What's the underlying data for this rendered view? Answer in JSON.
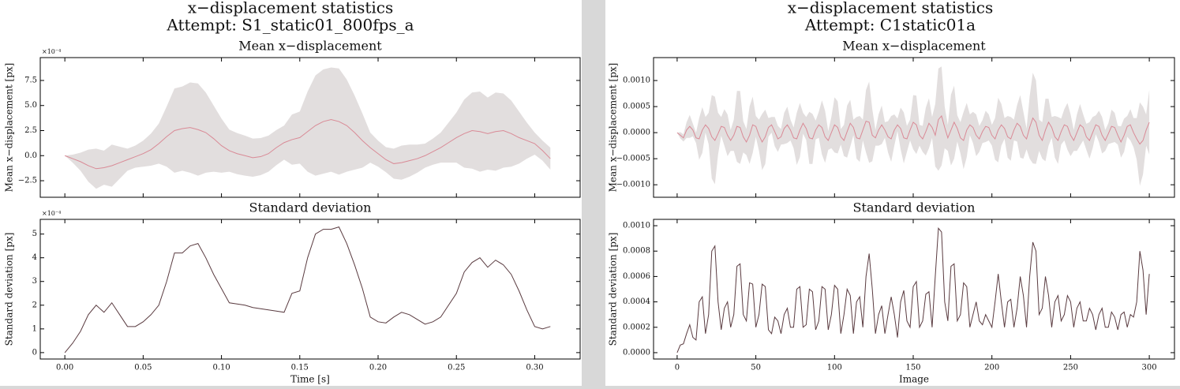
{
  "chart_data": [
    {
      "type": "line",
      "figure_title": "x−displacement statistics",
      "figure_subtitle": "Attempt: S1_static01_800fps_a",
      "title": "Mean x−displacement",
      "ylabel": "Mean x−displacement [px]",
      "offset_text": "×10⁻⁴",
      "values": [
        0,
        -0.3,
        -0.6,
        -1.0,
        -1.3,
        -1.2,
        -1.0,
        -0.7,
        -0.4,
        -0.1,
        0.2,
        0.6,
        1.2,
        1.9,
        2.5,
        2.7,
        2.8,
        2.6,
        2.3,
        1.7,
        1.0,
        0.5,
        0.2,
        0,
        -0.2,
        -0.1,
        0.2,
        0.8,
        1.3,
        1.6,
        1.8,
        2.4,
        3.0,
        3.4,
        3.6,
        3.4,
        3.0,
        2.3,
        1.5,
        0.8,
        0.2,
        -0.4,
        -0.8,
        -0.7,
        -0.5,
        -0.3,
        0,
        0.4,
        0.8,
        1.3,
        1.8,
        2.2,
        2.5,
        2.4,
        2.2,
        2.4,
        2.5,
        2.2,
        1.8,
        1.5,
        1.2,
        0.5,
        -0.3
      ],
      "color": "#d98a96",
      "band_color": "#e2dede",
      "ylim": [
        -4.15,
        9.78
      ],
      "yticks": [
        {
          "value": -2.5,
          "label": "−2.5"
        },
        {
          "value": 0,
          "label": "0.0"
        },
        2.5,
        {
          "value": 5,
          "label": "5.0"
        },
        7.5
      ]
    },
    {
      "type": "line",
      "title": "Standard deviation",
      "ylabel": "Standard deviation [px]",
      "xlabel": "Time [s]",
      "offset_text": "×10⁻⁴",
      "x": [
        0,
        0.005,
        0.01,
        0.015,
        0.02,
        0.025,
        0.03,
        0.035,
        0.04,
        0.045,
        0.05,
        0.055,
        0.06,
        0.065,
        0.07,
        0.075,
        0.08,
        0.085,
        0.09,
        0.095,
        0.1,
        0.105,
        0.11,
        0.115,
        0.12,
        0.125,
        0.13,
        0.135,
        0.14,
        0.145,
        0.15,
        0.155,
        0.16,
        0.165,
        0.17,
        0.175,
        0.18,
        0.185,
        0.19,
        0.195,
        0.2,
        0.205,
        0.21,
        0.215,
        0.22,
        0.225,
        0.23,
        0.235,
        0.24,
        0.245,
        0.25,
        0.255,
        0.26,
        0.265,
        0.27,
        0.275,
        0.28,
        0.285,
        0.29,
        0.295,
        0.3,
        0.305,
        0.31
      ],
      "values": [
        0,
        0.4,
        0.9,
        1.6,
        2.0,
        1.7,
        2.1,
        1.6,
        1.1,
        1.1,
        1.3,
        1.6,
        2.0,
        3.0,
        4.2,
        4.2,
        4.5,
        4.6,
        4.0,
        3.3,
        2.7,
        2.1,
        2.05,
        2.0,
        1.9,
        1.85,
        1.8,
        1.75,
        1.7,
        2.5,
        2.6,
        4.0,
        5.0,
        5.2,
        5.2,
        5.3,
        4.6,
        3.7,
        2.7,
        1.5,
        1.3,
        1.25,
        1.5,
        1.7,
        1.6,
        1.4,
        1.2,
        1.3,
        1.5,
        2.0,
        2.5,
        3.4,
        3.8,
        4.0,
        3.6,
        3.9,
        3.7,
        3.3,
        2.6,
        1.8,
        1.1,
        1.0,
        1.1
      ],
      "color": "#5a3b40",
      "xlim": [
        -0.0157,
        0.329
      ],
      "xticks": [
        {
          "value": 0,
          "label": "0.00"
        },
        0.05,
        {
          "value": 0.1,
          "label": "0.10"
        },
        0.15,
        {
          "value": 0.2,
          "label": "0.20"
        },
        0.25,
        {
          "value": 0.3,
          "label": "0.30"
        }
      ],
      "ylim": [
        -0.27,
        5.62
      ],
      "yticks": [
        0,
        1,
        2,
        3,
        4,
        5
      ]
    },
    {
      "type": "line",
      "figure_title": "x−displacement statistics",
      "figure_subtitle": "Attempt: C1static01a",
      "title": "Mean x−displacement",
      "ylabel": "Mean x−displacement [px]",
      "values": [
        0,
        -5e-05,
        -0.0001,
        5e-05,
        0.00012,
        5e-05,
        -0.0001,
        -0.00012,
        5e-05,
        0.00015,
        8e-05,
        -8e-05,
        -0.00015,
        -2e-05,
        0.00012,
        0.0001,
        -5e-05,
        -0.00015,
        -5e-05,
        0.00012,
        0.0001,
        -8e-05,
        -0.00018,
        -5e-05,
        0.00015,
        0.00012,
        -5e-05,
        -0.00018,
        -8e-05,
        0.0001,
        0.00015,
        2e-05,
        -0.00012,
        -8e-05,
        8e-05,
        0.00015,
        5e-05,
        -0.0001,
        -0.00012,
        5e-05,
        0.00018,
        8e-05,
        -0.0001,
        -0.00012,
        5e-05,
        0.00015,
        0.0001,
        -8e-05,
        -0.00015,
        0,
        0.00015,
        0.0001,
        -8e-05,
        -0.00015,
        2e-05,
        0.00018,
        0.0001,
        -0.0001,
        -0.00012,
        5e-05,
        0.00022,
        0.0002,
        -5e-05,
        -0.0001,
        5e-05,
        0.00015,
        5e-05,
        -8e-05,
        -0.00012,
        5e-05,
        0.00015,
        8e-05,
        -0.0001,
        -0.00012,
        5e-05,
        0.0002,
        0.00015,
        -5e-05,
        -0.00012,
        2e-05,
        0.00018,
        0.0001,
        -5e-05,
        0.00025,
        0.00032,
        0.0001,
        -0.0001,
        5e-05,
        0.0002,
        8e-05,
        -0.0001,
        -0.00015,
        5e-05,
        0.00015,
        0.0001,
        -5e-05,
        -0.00012,
        2e-05,
        0.00012,
        0.0001,
        -5e-05,
        -0.00012,
        5e-05,
        0.00015,
        8e-05,
        -8e-05,
        -0.00012,
        5e-05,
        0.00018,
        0.00012,
        -5e-05,
        -0.00012,
        0.0001,
        0.00028,
        0.0002,
        -5e-05,
        -0.00015,
        5e-05,
        0.0002,
        0.0001,
        -8e-05,
        -0.00015,
        2e-05,
        0.00015,
        0.00012,
        -5e-05,
        -0.00015,
        0,
        0.00015,
        0.0001,
        -8e-05,
        -0.00015,
        0,
        0.00015,
        0.00012,
        -5e-05,
        -0.00015,
        -2e-05,
        0.00012,
        0.0001,
        -5e-05,
        -0.00018,
        -5e-05,
        0.00012,
        0.00015,
        0,
        -0.00012,
        -0.00022,
        -0.00015,
        5e-05,
        0.0002
      ],
      "color": "#d98a96",
      "band_color": "#e2dede",
      "ylim": [
        -0.00124,
        0.00144
      ],
      "yticks": [
        {
          "value": -0.001,
          "label": "−0.0010"
        },
        {
          "value": -0.0005,
          "label": "−0.0005"
        },
        {
          "value": 0,
          "label": "0.0000"
        },
        0.0005,
        {
          "value": 0.001,
          "label": "0.0010"
        }
      ]
    },
    {
      "type": "line",
      "title": "Standard deviation",
      "ylabel": "Standard deviation [px]",
      "xlabel": "Image",
      "x": [
        0,
        2,
        4,
        6,
        8,
        10,
        12,
        14,
        16,
        18,
        20,
        22,
        24,
        26,
        28,
        30,
        32,
        34,
        36,
        38,
        40,
        42,
        44,
        46,
        48,
        50,
        52,
        54,
        56,
        58,
        60,
        62,
        64,
        66,
        68,
        70,
        72,
        74,
        76,
        78,
        80,
        82,
        84,
        86,
        88,
        90,
        92,
        94,
        96,
        98,
        100,
        102,
        104,
        106,
        108,
        110,
        112,
        114,
        116,
        118,
        120,
        122,
        124,
        126,
        128,
        130,
        132,
        134,
        136,
        138,
        140,
        142,
        144,
        146,
        148,
        150,
        152,
        154,
        156,
        158,
        160,
        162,
        164,
        166,
        168,
        170,
        172,
        174,
        176,
        178,
        180,
        182,
        184,
        186,
        188,
        190,
        192,
        194,
        196,
        198,
        200,
        202,
        204,
        206,
        208,
        210,
        212,
        214,
        216,
        218,
        220,
        222,
        224,
        226,
        228,
        230,
        232,
        234,
        236,
        238,
        240,
        242,
        244,
        246,
        248,
        250,
        252,
        254,
        256,
        258,
        260,
        262,
        264,
        266,
        268,
        270,
        272,
        274,
        276,
        278,
        280,
        282,
        284,
        286,
        288,
        290,
        292,
        294,
        296,
        298,
        300
      ],
      "values": [
        0,
        6e-05,
        7e-05,
        0.00015,
        0.00022,
        0.00012,
        0.0001,
        0.0004,
        0.00044,
        0.00015,
        0.0003,
        0.0008,
        0.00084,
        0.0004,
        0.00018,
        0.00035,
        0.0004,
        0.0002,
        0.0003,
        0.00068,
        0.0007,
        0.0003,
        0.00025,
        0.00055,
        0.00054,
        0.0002,
        0.0003,
        0.00054,
        0.00052,
        0.00018,
        0.00015,
        0.00028,
        0.00025,
        0.00015,
        0.0003,
        0.00035,
        0.0002,
        0.0002,
        0.0005,
        0.00052,
        0.0002,
        0.00022,
        0.0005,
        0.00048,
        0.00018,
        0.00025,
        0.00052,
        0.0005,
        0.00018,
        0.0003,
        0.00053,
        0.0005,
        0.00015,
        0.0003,
        0.0005,
        0.00045,
        0.00015,
        0.0004,
        0.00044,
        0.0002,
        0.0006,
        0.00078,
        0.0005,
        0.00015,
        0.0003,
        0.00037,
        0.00015,
        0.0003,
        0.00044,
        0.0003,
        0.00012,
        0.0004,
        0.00049,
        0.00025,
        0.0002,
        0.00052,
        0.00056,
        0.0002,
        0.00025,
        0.00046,
        0.00048,
        0.0002,
        0.0006,
        0.00098,
        0.00095,
        0.0004,
        0.00025,
        0.00068,
        0.0007,
        0.00025,
        0.0003,
        0.00055,
        0.00052,
        0.0002,
        0.0003,
        0.0004,
        0.00025,
        0.00022,
        0.0003,
        0.00025,
        0.0002,
        0.0004,
        0.00062,
        0.0004,
        0.0002,
        0.0004,
        0.00042,
        0.0002,
        0.00035,
        0.0006,
        0.00045,
        0.0002,
        0.0006,
        0.00087,
        0.0008,
        0.0003,
        0.00035,
        0.0006,
        0.00045,
        0.0002,
        0.0004,
        0.00045,
        0.00025,
        0.0003,
        0.00045,
        0.0004,
        0.0002,
        0.00035,
        0.0004,
        0.00025,
        0.00025,
        0.00035,
        0.0003,
        0.00018,
        0.0003,
        0.00035,
        0.0002,
        0.0002,
        0.00032,
        0.00028,
        0.00018,
        0.0003,
        0.00032,
        0.0002,
        0.0003,
        0.00028,
        0.0004,
        0.0008,
        0.00065,
        0.0003,
        0.00062
      ],
      "color": "#5a3b40",
      "xlim": [
        -15,
        316
      ],
      "xticks": [
        0,
        50,
        100,
        150,
        200,
        250,
        300
      ],
      "ylim": [
        -5e-05,
        0.00105
      ],
      "yticks": [
        {
          "value": 0,
          "label": "0.0000"
        },
        {
          "value": 0.0002,
          "label": "0.0002"
        },
        {
          "value": 0.0004,
          "label": "0.0004"
        },
        {
          "value": 0.0006,
          "label": "0.0006"
        },
        {
          "value": 0.0008,
          "label": "0.0008"
        },
        {
          "value": 0.001,
          "label": "0.0010"
        }
      ]
    }
  ]
}
